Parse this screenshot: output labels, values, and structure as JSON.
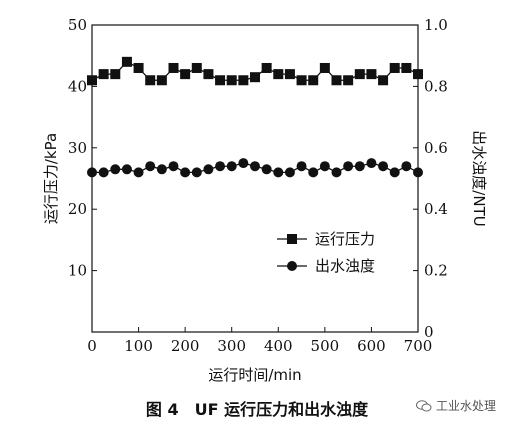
{
  "chart_data": {
    "type": "line",
    "xlabel": "运行时间/min",
    "ylabel_left": "运行压力/kPa",
    "ylabel_right": "出水浊度/NTU",
    "xlim": [
      0,
      700
    ],
    "ylim_left": [
      0,
      50
    ],
    "ylim_right": [
      0,
      1.0
    ],
    "x_ticks": [
      "0",
      "100",
      "200",
      "300",
      "400",
      "500",
      "600",
      "700"
    ],
    "y_left_ticks": [
      "10",
      "20",
      "30",
      "40",
      "50"
    ],
    "y_right_ticks": [
      "0",
      "0.2",
      "0.4",
      "0.6",
      "0.8",
      "1.0"
    ],
    "legend_position": "center-right",
    "grid": false,
    "series": [
      {
        "name": "运行压力",
        "axis": "left",
        "marker": "square",
        "x": [
          0,
          25,
          50,
          75,
          100,
          125,
          150,
          175,
          200,
          225,
          250,
          275,
          300,
          325,
          350,
          375,
          400,
          425,
          450,
          475,
          500,
          525,
          550,
          575,
          600,
          625,
          650,
          675,
          700
        ],
        "y": [
          41.0,
          42.0,
          42.0,
          44.0,
          43.0,
          41.0,
          41.0,
          43.0,
          42.0,
          43.0,
          42.0,
          41.0,
          41.0,
          41.0,
          41.5,
          43.0,
          42.0,
          42.0,
          41.0,
          41.0,
          43.0,
          41.0,
          41.0,
          42.0,
          42.0,
          41.0,
          43.0,
          43.0,
          42.0
        ]
      },
      {
        "name": "出水浊度",
        "axis": "right",
        "marker": "circle",
        "x": [
          0,
          25,
          50,
          75,
          100,
          125,
          150,
          175,
          200,
          225,
          250,
          275,
          300,
          325,
          350,
          375,
          400,
          425,
          450,
          475,
          500,
          525,
          550,
          575,
          600,
          625,
          650,
          675,
          700
        ],
        "y": [
          0.52,
          0.52,
          0.53,
          0.53,
          0.52,
          0.54,
          0.53,
          0.54,
          0.52,
          0.52,
          0.53,
          0.54,
          0.54,
          0.55,
          0.54,
          0.53,
          0.52,
          0.52,
          0.54,
          0.52,
          0.54,
          0.52,
          0.54,
          0.54,
          0.55,
          0.54,
          0.52,
          0.54,
          0.52
        ]
      }
    ]
  },
  "caption": "图 4　UF 运行压力和出水浊度",
  "watermark": "工业水处理",
  "colors": {
    "ink": "#111111",
    "background": "#ffffff"
  },
  "icons": {
    "watermark": "wechat-icon"
  }
}
